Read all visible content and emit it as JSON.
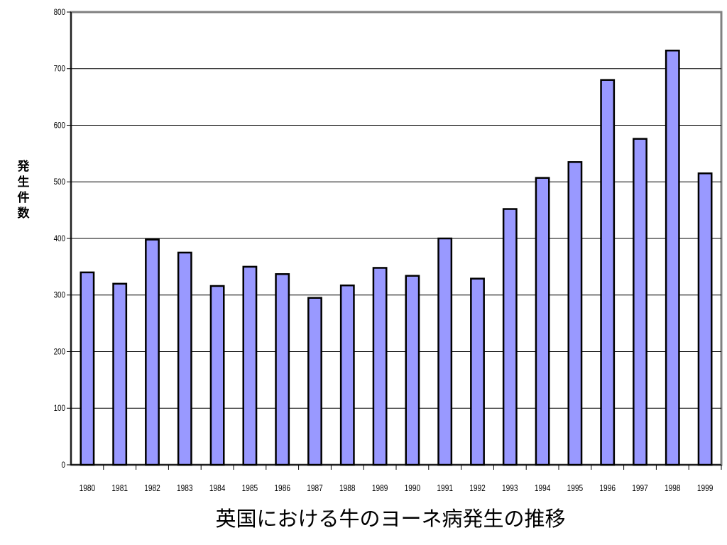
{
  "chart_data": {
    "type": "bar",
    "title": "英国における牛のヨーネ病発生の推移",
    "xlabel": "",
    "ylabel": "発生件数",
    "ylim": [
      0,
      800
    ],
    "yticks": [
      0,
      100,
      200,
      300,
      400,
      500,
      600,
      700,
      800
    ],
    "grid": true,
    "categories": [
      "1980",
      "1981",
      "1982",
      "1983",
      "1984",
      "1985",
      "1986",
      "1987",
      "1988",
      "1989",
      "1990",
      "1991",
      "1992",
      "1993",
      "1994",
      "1995",
      "1996",
      "1997",
      "1998",
      "1999"
    ],
    "values": [
      340,
      320,
      398,
      375,
      316,
      350,
      337,
      295,
      317,
      348,
      334,
      400,
      329,
      452,
      507,
      535,
      680,
      576,
      732,
      515
    ],
    "colors": {
      "bar": "#9999ff",
      "bar_edge": "#000000",
      "grid": "#000000",
      "frame": "#808080"
    }
  }
}
